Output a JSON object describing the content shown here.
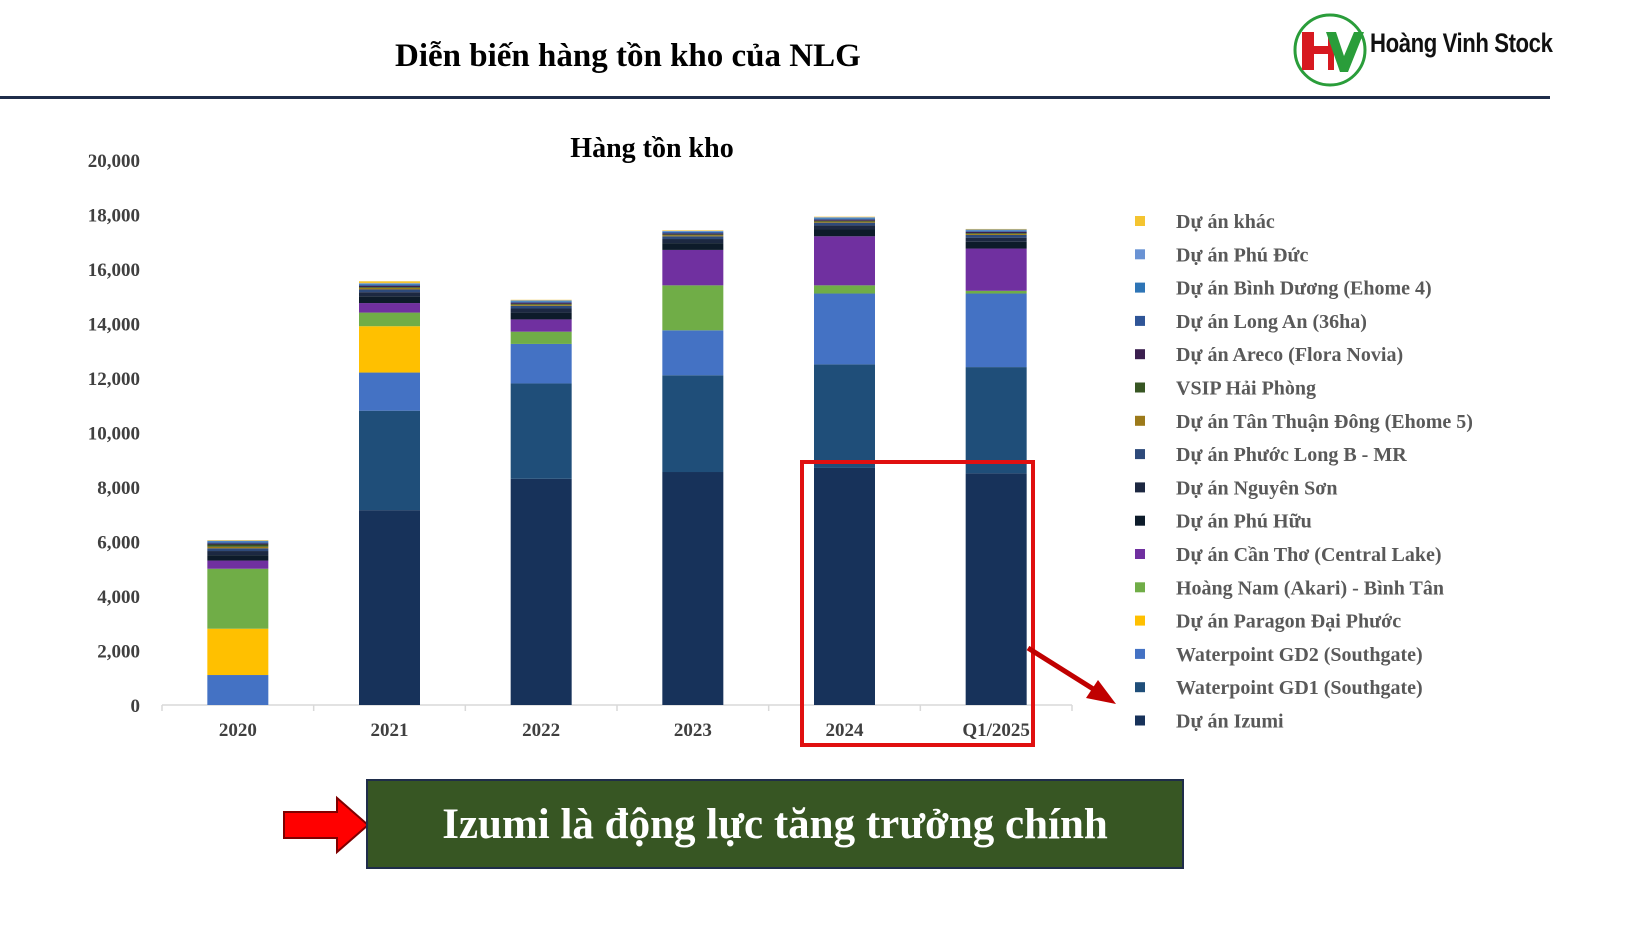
{
  "page": {
    "title": "Diễn biến hàng tồn kho của NLG",
    "logo_text": "Hoàng Vinh Stock",
    "callout_text": "Izumi là động lực tăng trưởng chính"
  },
  "colors": {
    "title_rule": "#1f2d4a",
    "callout_bg": "#375623",
    "highlight": "#e01010",
    "logo_red": "#d71920",
    "logo_green": "#2a9d3a"
  },
  "chart_data": {
    "type": "bar",
    "stacked": true,
    "title": "Hàng tồn kho",
    "xlabel": "",
    "ylabel": "",
    "ylim": [
      0,
      20000
    ],
    "yticks": [
      "0",
      "2,000",
      "4,000",
      "6,000",
      "8,000",
      "10,000",
      "12,000",
      "14,000",
      "16,000",
      "18,000",
      "20,000"
    ],
    "ytick_values": [
      0,
      2000,
      4000,
      6000,
      8000,
      10000,
      12000,
      14000,
      16000,
      18000,
      20000
    ],
    "grid": false,
    "legend_position": "right",
    "categories": [
      "2020",
      "2021",
      "2022",
      "2023",
      "2024",
      "Q1/2025"
    ],
    "series": [
      {
        "name": "Dự án Izumi",
        "color": "#17325a",
        "values": [
          0,
          7150,
          8300,
          8550,
          8700,
          8500
        ]
      },
      {
        "name": "Waterpoint GD1 (Southgate)",
        "color": "#1f4e79",
        "values": [
          0,
          3650,
          3500,
          3550,
          3800,
          3900
        ]
      },
      {
        "name": "Waterpoint GD2 (Southgate)",
        "color": "#4472c4",
        "values": [
          1100,
          1400,
          1450,
          1650,
          2600,
          2700
        ]
      },
      {
        "name": "Dự án Paragon Đại Phước",
        "color": "#ffc000",
        "values": [
          1700,
          1700,
          0,
          0,
          0,
          0
        ]
      },
      {
        "name": "Hoàng Nam (Akari) - Bình Tân",
        "color": "#70ad47",
        "values": [
          2200,
          500,
          450,
          1650,
          300,
          100
        ]
      },
      {
        "name": "Dự án Cần Thơ (Central Lake)",
        "color": "#7030a0",
        "values": [
          300,
          350,
          450,
          1300,
          1800,
          1550
        ]
      },
      {
        "name": "Dự án Phú Hữu",
        "color": "#0d1b2a",
        "values": [
          200,
          250,
          250,
          250,
          250,
          250
        ]
      },
      {
        "name": "Dự án Nguyên Sơn",
        "color": "#1c2841",
        "values": [
          150,
          150,
          150,
          150,
          150,
          150
        ]
      },
      {
        "name": "Dự án Phước Long B - MR",
        "color": "#2e4a7a",
        "values": [
          100,
          100,
          100,
          100,
          100,
          100
        ]
      },
      {
        "name": "Dự án Tân Thuận Đông (Ehome 5)",
        "color": "#9c7a1a",
        "values": [
          60,
          60,
          40,
          40,
          40,
          40
        ]
      },
      {
        "name": "VSIP Hải Phòng",
        "color": "#375623",
        "values": [
          80,
          30,
          30,
          30,
          30,
          30
        ]
      },
      {
        "name": "Dự án Areco (Flora Novia)",
        "color": "#3b1f4f",
        "values": [
          40,
          40,
          40,
          40,
          40,
          40
        ]
      },
      {
        "name": "Dự án Long An (36ha)",
        "color": "#2f5597",
        "values": [
          40,
          40,
          30,
          30,
          30,
          30
        ]
      },
      {
        "name": "Dự án Bình Dương (Ehome 4)",
        "color": "#2e75b6",
        "values": [
          30,
          30,
          30,
          30,
          30,
          30
        ]
      },
      {
        "name": "Dự án Phú Đức",
        "color": "#6a93d4",
        "values": [
          30,
          30,
          30,
          30,
          30,
          30
        ]
      },
      {
        "name": "Dự án khác",
        "color": "#f4c430",
        "values": [
          20,
          70,
          20,
          20,
          20,
          20
        ]
      }
    ]
  }
}
